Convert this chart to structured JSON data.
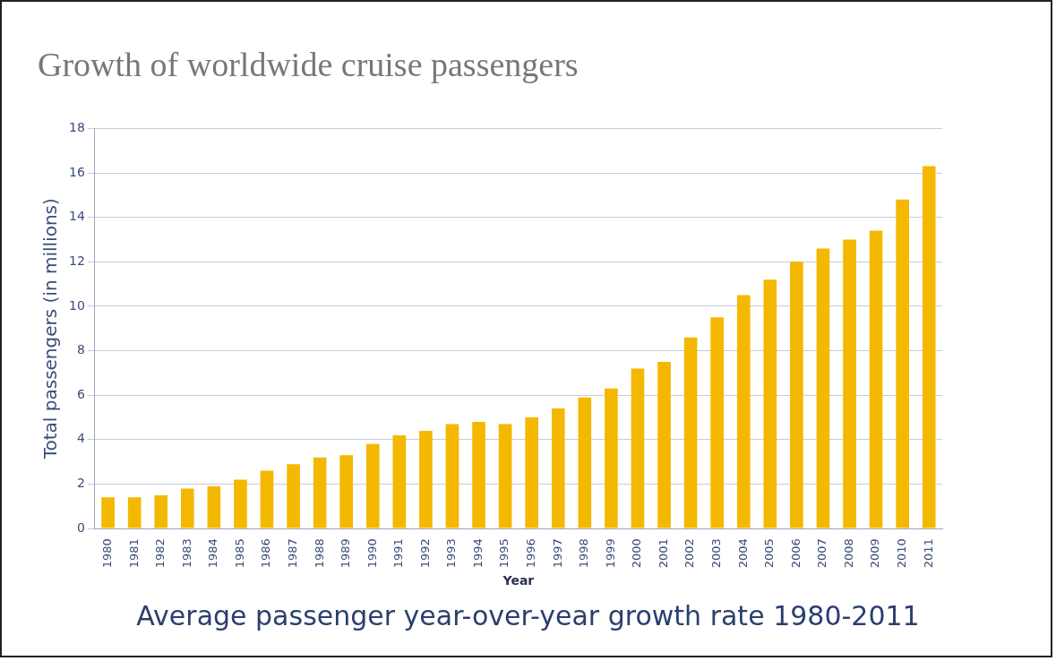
{
  "chart_data": {
    "type": "bar",
    "title": "Growth of worldwide cruise passengers",
    "xlabel": "Year",
    "ylabel": "Total passengers (in millions)",
    "categories": [
      "1980",
      "1981",
      "1982",
      "1983",
      "1984",
      "1985",
      "1986",
      "1987",
      "1988",
      "1989",
      "1990",
      "1991",
      "1992",
      "1993",
      "1994",
      "1995",
      "1996",
      "1997",
      "1998",
      "1999",
      "2000",
      "2001",
      "2002",
      "2003",
      "2004",
      "2005",
      "2006",
      "2007",
      "2008",
      "2009",
      "2010",
      "2011"
    ],
    "values": [
      1.4,
      1.4,
      1.5,
      1.8,
      1.9,
      2.2,
      2.6,
      2.9,
      3.2,
      3.3,
      3.8,
      4.2,
      4.4,
      4.7,
      4.8,
      4.7,
      5.0,
      5.4,
      5.9,
      6.3,
      7.2,
      7.5,
      8.6,
      9.5,
      10.5,
      11.2,
      12.0,
      12.6,
      13.0,
      13.4,
      14.8,
      16.3
    ],
    "color": "#f5b800",
    "ylim": [
      0,
      18
    ],
    "yticks": [
      0,
      2,
      4,
      6,
      8,
      10,
      12,
      14,
      16,
      18
    ],
    "grid": "y",
    "annotations": [
      "Average passenger year-over-year growth rate 1980-2011"
    ]
  }
}
